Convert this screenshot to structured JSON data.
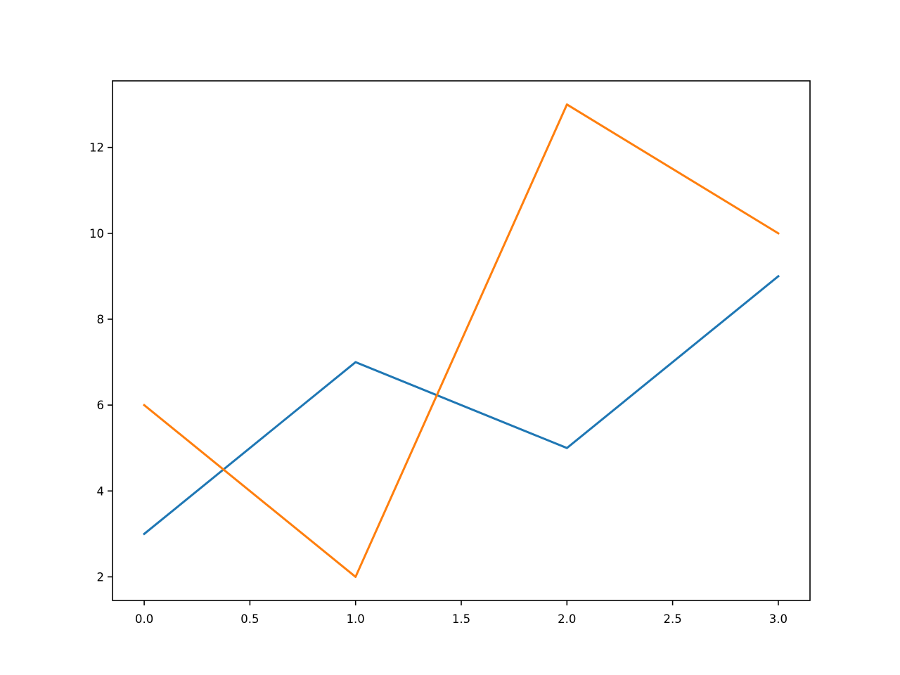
{
  "chart_data": {
    "type": "line",
    "title": "",
    "xlabel": "",
    "ylabel": "",
    "x": [
      0,
      1,
      2,
      3
    ],
    "series": [
      {
        "values": [
          3,
          7,
          5,
          9
        ],
        "color": "#1f77b4"
      },
      {
        "values": [
          6,
          2,
          13,
          10
        ],
        "color": "#ff7f0e"
      }
    ],
    "xlim": [
      -0.15,
      3.15
    ],
    "ylim": [
      1.45,
      13.55
    ],
    "xticks": [
      "0.0",
      "0.5",
      "1.0",
      "1.5",
      "2.0",
      "2.5",
      "3.0"
    ],
    "yticks": [
      "2",
      "4",
      "6",
      "8",
      "10",
      "12"
    ],
    "grid": false,
    "legend": "none"
  }
}
